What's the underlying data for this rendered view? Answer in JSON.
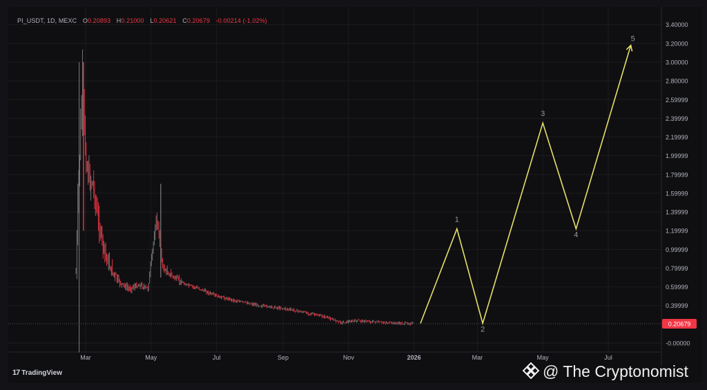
{
  "header": {
    "symbol": "PI_USDT, 1D, MEXC",
    "open_label": "O",
    "open": "0.20893",
    "high_label": "H",
    "high": "0.21000",
    "low_label": "L",
    "low": "0.20621",
    "close_label": "C",
    "close": "0.20679",
    "change": "-0.00214 (-1.02%)"
  },
  "colors": {
    "background": "#0f0f11",
    "up_candle": "#808080",
    "down_candle": "#f23645",
    "projection": "#e8e06a",
    "price_badge": "#f23645"
  },
  "chart_data": {
    "type": "line",
    "y_ticks": [
      "3.40000",
      "3.20000",
      "3.00000",
      "2.80000",
      "2.59999",
      "2.39999",
      "2.19999",
      "1.99999",
      "1.79999",
      "1.59999",
      "1.39999",
      "1.19999",
      "0.99999",
      "0.79999",
      "0.59999",
      "0.39999",
      "0.20679",
      "-0.00000"
    ],
    "y_tick_values": [
      3.4,
      3.2,
      3.0,
      2.8,
      2.6,
      2.4,
      2.2,
      2.0,
      1.8,
      1.6,
      1.4,
      1.2,
      1.0,
      0.8,
      0.6,
      0.4,
      0.20679,
      0.0
    ],
    "ylim": [
      -0.05,
      3.5
    ],
    "x_ticks": [
      "Mar",
      "May",
      "Jul",
      "Sep",
      "Nov",
      "2026",
      "Mar",
      "May",
      "Jul"
    ],
    "x_tick_dates": [
      "2025-03-01",
      "2025-05-01",
      "2025-07-01",
      "2025-09-01",
      "2025-11-01",
      "2026-01-01",
      "2026-03-01",
      "2026-05-01",
      "2026-07-01"
    ],
    "last_price": "0.20679",
    "series": [
      {
        "kind": "price",
        "x": [
          "2025-02-20",
          "2025-02-22",
          "2025-02-26",
          "2025-03-01",
          "2025-03-04",
          "2025-03-08",
          "2025-03-12",
          "2025-03-18",
          "2025-03-24",
          "2025-04-01",
          "2025-04-10",
          "2025-04-20",
          "2025-04-28",
          "2025-05-06",
          "2025-05-12",
          "2025-05-20",
          "2025-06-01",
          "2025-06-15",
          "2025-07-01",
          "2025-07-20",
          "2025-08-10",
          "2025-09-01",
          "2025-09-20",
          "2025-10-10",
          "2025-10-25",
          "2025-11-10",
          "2025-12-01",
          "2025-12-20",
          "2026-01-01"
        ],
        "y": [
          0.75,
          1.6,
          2.75,
          2.0,
          1.75,
          1.7,
          1.35,
          1.0,
          0.8,
          0.65,
          0.58,
          0.62,
          0.58,
          1.35,
          0.8,
          0.72,
          0.63,
          0.58,
          0.5,
          0.45,
          0.4,
          0.37,
          0.33,
          0.28,
          0.22,
          0.24,
          0.22,
          0.21,
          0.21
        ]
      },
      {
        "kind": "projection",
        "labels": [
          "1",
          "2",
          "3",
          "4",
          "5"
        ],
        "x": [
          "2026-01-07",
          "2026-02-10",
          "2026-03-06",
          "2026-05-01",
          "2026-06-01",
          "2026-07-22"
        ],
        "y": [
          0.21,
          1.22,
          0.21,
          2.35,
          1.22,
          3.18
        ]
      }
    ]
  },
  "footer": {
    "brand_mark": "17",
    "brand": "TradingView"
  },
  "watermark": {
    "text": "@ The Cryptonomist"
  }
}
